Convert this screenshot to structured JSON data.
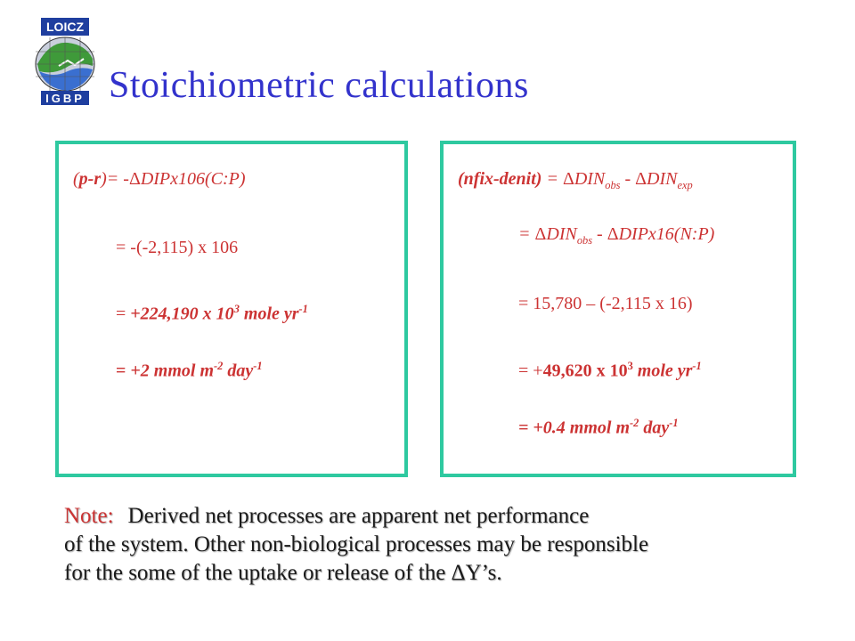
{
  "logo": {
    "top_text": "LOICZ",
    "bottom_text": "IGBP"
  },
  "slide": {
    "title": "Stoichiometric calculations"
  },
  "left_box": {
    "line1": {
      "a": "(",
      "b": "p-r",
      "c": ")= -",
      "d": "Δ",
      "e": "DIPx106(C:P)"
    },
    "line2": "= -(-2,115) x 106",
    "line3": {
      "eq": "= ",
      "val": "+224,190 x 10",
      "sup1": "3",
      "unit": " mole yr",
      "sup2": "-1"
    },
    "line4": {
      "eq": "=  ",
      "val": "+2 mmol m",
      "sup1": "-2",
      "unit": " day",
      "sup2": "-1"
    }
  },
  "right_box": {
    "line1": {
      "lhs": "(nfix-denit)",
      "eq": " = ",
      "d1": "Δ",
      "t1": "DIN",
      "s1": "obs",
      "m": " - ",
      "d2": "Δ",
      "t2": "DIN",
      "s2": "exp"
    },
    "line2": {
      "eq": "= ",
      "d1": "Δ",
      "t1": "DIN",
      "s1": "obs",
      "m": " - ",
      "d2": "Δ",
      "t2": "DIPx16(N:P)"
    },
    "line3": "= 15,780 – (-2,115 x 16)",
    "line4": {
      "eq": "= +",
      "val": "49,620 x 10",
      "sup1": "3",
      "unit": " mole yr",
      "sup2": "-1"
    },
    "line5": {
      "eq": "= ",
      "val": "+0.4 mmol m",
      "sup1": "-2",
      "unit": " day",
      "sup2": "-1"
    }
  },
  "note": {
    "label": "Note:",
    "line1": "Derived net processes are apparent net performance",
    "line2": "of the system. Other non-biological processes may be responsible",
    "line3a": "for the some of the uptake or release of the ",
    "delta": "Δ",
    "line3b": "Y’s."
  },
  "colors": {
    "title": "#3333cc",
    "formula": "#cc3333",
    "box_border": "#2ec9a0"
  }
}
